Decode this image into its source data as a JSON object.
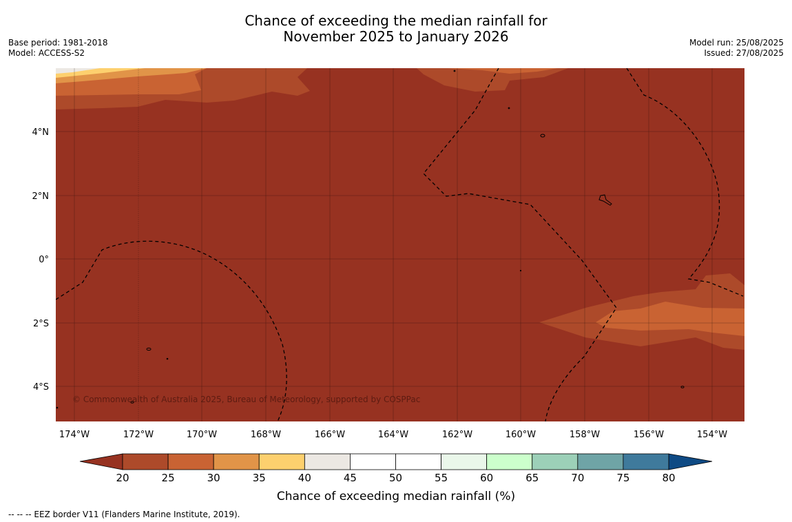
{
  "title": {
    "line1": "Chance of exceeding the median rainfall for",
    "line2": "November 2025 to January 2026"
  },
  "meta": {
    "base_period": "Base period: 1981-2018",
    "model": "Model: ACCESS-S2",
    "model_run": "Model run: 25/08/2025",
    "issued": "Issued: 27/08/2025"
  },
  "map": {
    "latitude_labels": [
      "4°N",
      "2°N",
      "0°",
      "2°S",
      "4°S"
    ],
    "longitude_labels": [
      "174°W",
      "172°W",
      "170°W",
      "168°W",
      "166°W",
      "164°W",
      "162°W",
      "160°W",
      "158°W",
      "156°W",
      "154°W"
    ],
    "copyright": "© Commonwealth of Australia 2025, Bureau of Meteorology, supported by COSPPac",
    "dominant_color": "#973221"
  },
  "legend": {
    "ticks": [
      "20",
      "25",
      "30",
      "35",
      "40",
      "45",
      "50",
      "55",
      "60",
      "65",
      "70",
      "75",
      "80"
    ],
    "colors": [
      "#973221",
      "#ad4a2a",
      "#c96333",
      "#e19448",
      "#fdd06e",
      "#ece8e3",
      "#ffffff",
      "#ffffff",
      "#eaf7ea",
      "#ccffcc",
      "#9cd0b8",
      "#6fa4a6",
      "#3f7a9c",
      "#0e4a84"
    ],
    "label": "Chance of exceeding median rainfall (%)"
  },
  "footer": "--  --  -- EEZ border V11 (Flanders Marine Institute, 2019)."
}
